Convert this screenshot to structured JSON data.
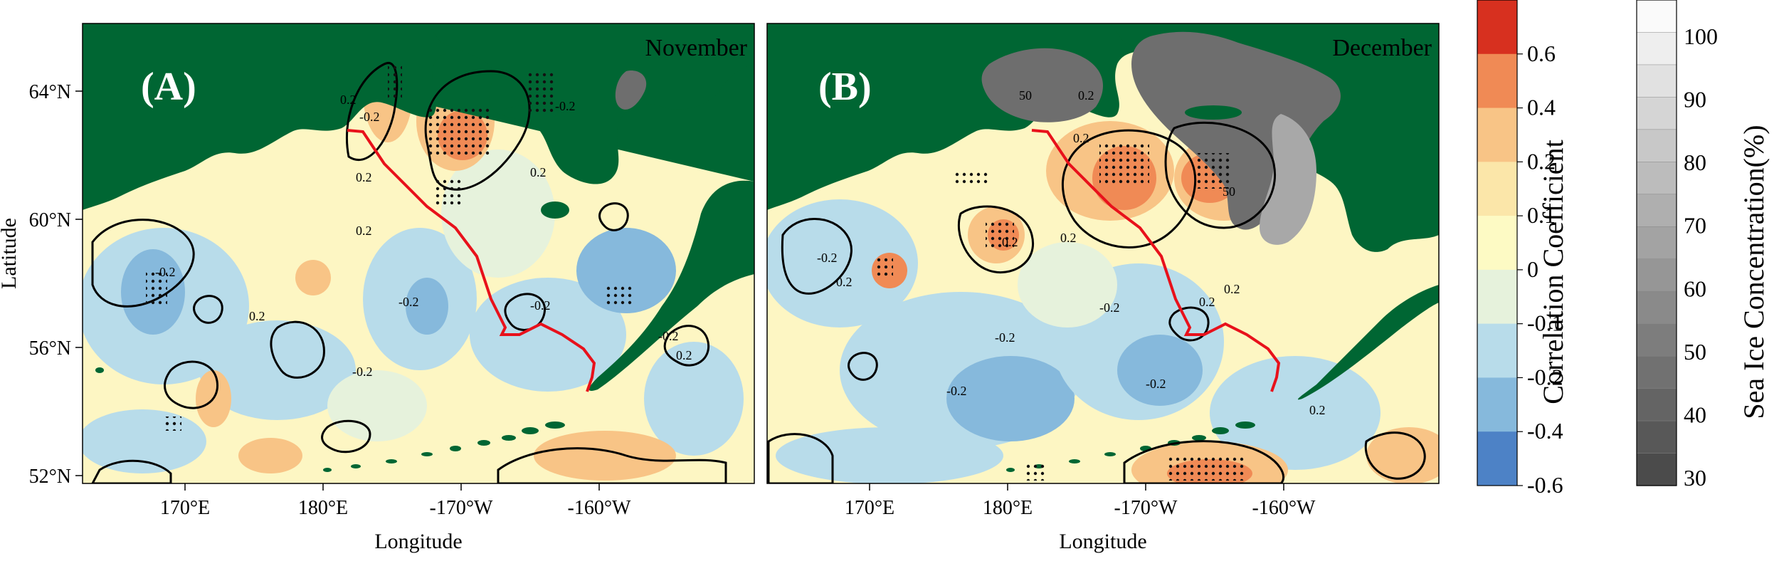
{
  "panels": [
    {
      "tag": "(A)",
      "month": "November"
    },
    {
      "tag": "(B)",
      "month": "December"
    }
  ],
  "axes": {
    "xlabel": "Longitude",
    "ylabel": "Latitude",
    "x_ticks": [
      "170°E",
      "180°E",
      "-170°W",
      "-160°W"
    ],
    "y_ticks": [
      "64°N",
      "60°N",
      "56°N",
      "52°N"
    ]
  },
  "contour_labels": {
    "A": [
      "0.2",
      "-0.2",
      "0.2",
      "0.2",
      "-0.2",
      "0.2",
      "-0.2",
      "-0.2",
      "0.2",
      "-0.2",
      "-0.2",
      "-0.2",
      "0.2"
    ],
    "B": [
      "50",
      "0.2",
      "0.2",
      "50",
      "-0.2",
      "0.2",
      "0.2",
      "0.2",
      "-0.2",
      "-0.2",
      "-0.2",
      "-0.2",
      "0.2",
      "0.2",
      "0.2"
    ]
  },
  "correlation_colorbar": {
    "title": "Correlation Coefficient",
    "ticks": [
      "0.6",
      "0.4",
      "0.2",
      "0.1",
      "0",
      "-0.1",
      "-0.2",
      "-0.4",
      "-0.6"
    ],
    "colors": [
      "#d7301f",
      "#f08a55",
      "#f8c486",
      "#fbe6a9",
      "#fdfac4",
      "#e6f2dc",
      "#b8dcea",
      "#86b9dc",
      "#4d82c6"
    ]
  },
  "ice_colorbar": {
    "title": "Sea Ice Concentration(%)",
    "ticks": [
      "100",
      "90",
      "80",
      "70",
      "60",
      "50",
      "40",
      "30"
    ]
  },
  "colors": {
    "land": "#006633",
    "ocean_base": "#fdf6c3",
    "route": "#e8111b",
    "stipple": "#111111"
  }
}
